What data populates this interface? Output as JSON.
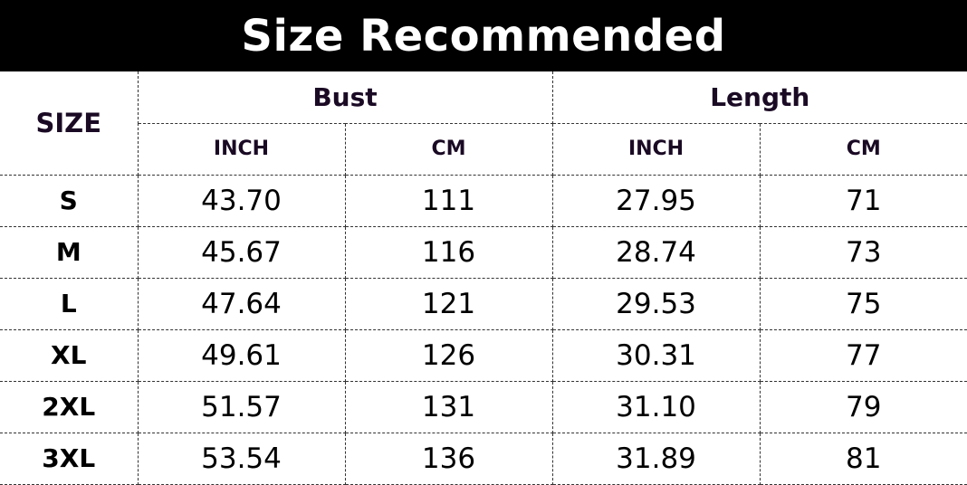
{
  "title": "Size Recommended",
  "headers": {
    "size": "SIZE",
    "groups": [
      "Bust",
      "Length"
    ],
    "units": [
      "INCH",
      "CM",
      "INCH",
      "CM"
    ]
  },
  "rows": [
    {
      "size": "S",
      "values": [
        "43.70",
        "111",
        "27.95",
        "71"
      ]
    },
    {
      "size": "M",
      "values": [
        "45.67",
        "116",
        "28.74",
        "73"
      ]
    },
    {
      "size": "L",
      "values": [
        "47.64",
        "121",
        "29.53",
        "75"
      ]
    },
    {
      "size": "XL",
      "values": [
        "49.61",
        "126",
        "30.31",
        "77"
      ]
    },
    {
      "size": "2XL",
      "values": [
        "51.57",
        "131",
        "31.10",
        "79"
      ]
    },
    {
      "size": "3XL",
      "values": [
        "53.54",
        "136",
        "31.89",
        "81"
      ]
    }
  ]
}
